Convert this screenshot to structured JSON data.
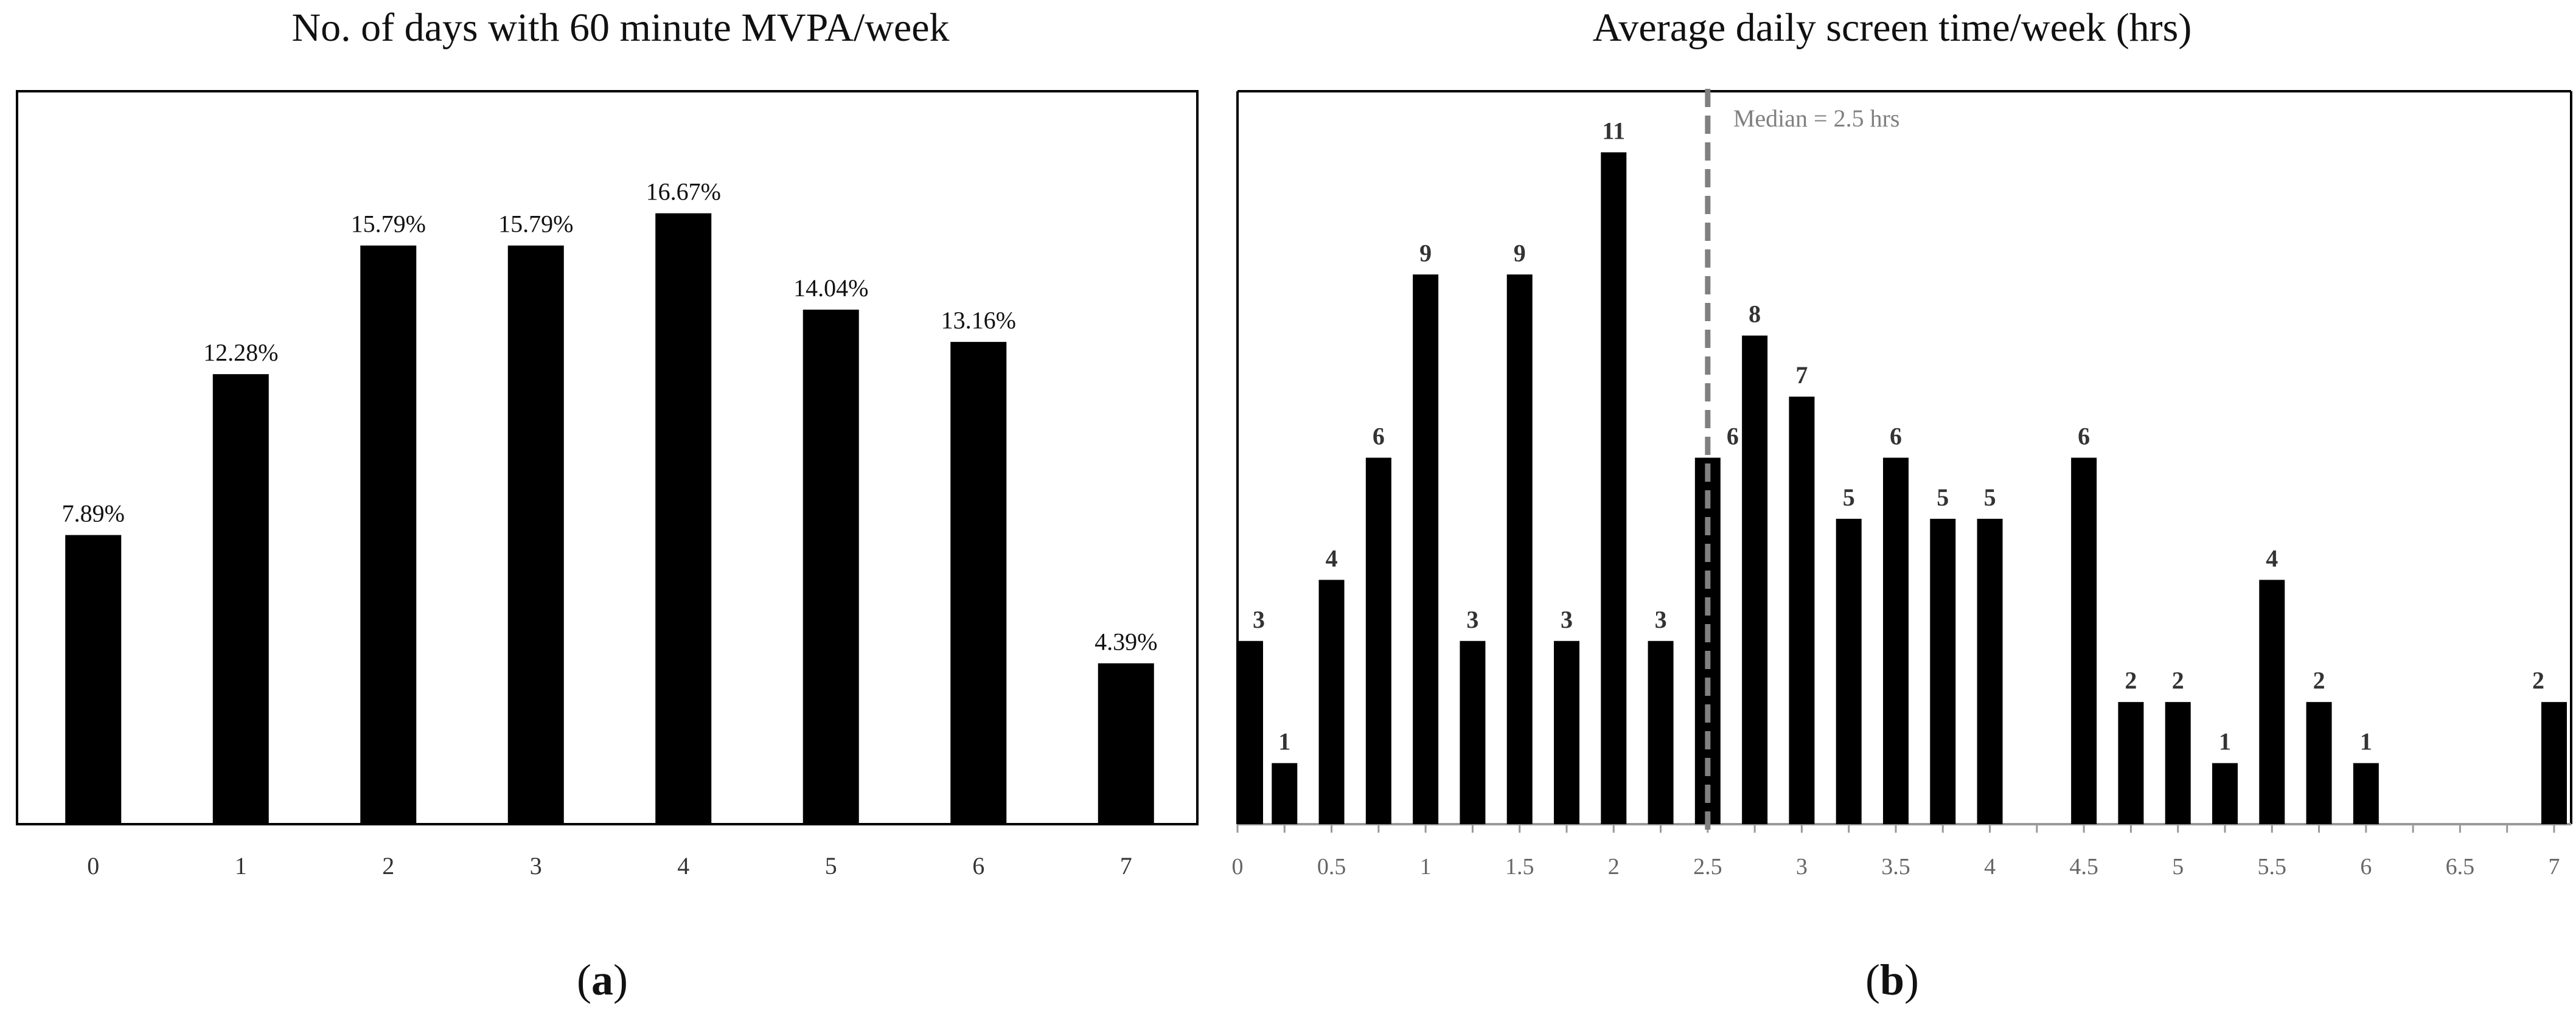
{
  "chart_data": [
    {
      "panel": "a",
      "type": "bar",
      "title": "No. of days with 60 minute MVPA/week",
      "categories": [
        "0",
        "1",
        "2",
        "3",
        "4",
        "5",
        "6",
        "7"
      ],
      "values": [
        7.89,
        12.28,
        15.79,
        15.79,
        16.67,
        14.04,
        13.16,
        4.39
      ],
      "data_labels": [
        "7.89%",
        "12.28%",
        "15.79%",
        "15.79%",
        "16.67%",
        "14.04%",
        "13.16%",
        "4.39%"
      ],
      "ylim": [
        0,
        20
      ],
      "grid": false,
      "panel_label": {
        "open": "(",
        "letter": "a",
        "close": ")"
      }
    },
    {
      "panel": "b",
      "type": "bar",
      "title": "Average daily screen time/week (hrs)",
      "x": [
        0,
        0.25,
        0.5,
        0.75,
        1,
        1.25,
        1.5,
        1.75,
        2,
        2.25,
        2.5,
        2.75,
        3,
        3.25,
        3.5,
        3.75,
        4,
        4.5,
        4.75,
        5,
        5.25,
        5.5,
        5.75,
        6,
        7
      ],
      "values": [
        3,
        1,
        4,
        6,
        9,
        3,
        9,
        3,
        11,
        3,
        6,
        8,
        7,
        5,
        6,
        5,
        5,
        6,
        2,
        2,
        1,
        4,
        2,
        1,
        2
      ],
      "data_labels": [
        "3",
        "1",
        "4",
        "6",
        "9",
        "3",
        "9",
        "3",
        "11",
        "3",
        "6",
        "8",
        "7",
        "5",
        "6",
        "5",
        "5",
        "6",
        "2",
        "2",
        "1",
        "4",
        "2",
        "1",
        "2"
      ],
      "xticks": [
        0,
        0.5,
        1,
        1.5,
        2,
        2.5,
        3,
        3.5,
        4,
        4.5,
        5,
        5.5,
        6,
        6.5,
        7
      ],
      "xtick_labels": [
        "0",
        "0.5",
        "1",
        "1.5",
        "2",
        "2.5",
        "3",
        "3.5",
        "4",
        "4.5",
        "5",
        "5.5",
        "6",
        "6.5",
        "7"
      ],
      "xlim": [
        0,
        7
      ],
      "ylim": [
        0,
        12
      ],
      "median": {
        "value": 2.5,
        "label": "Median = 2.5 hrs",
        "color": "#808080"
      },
      "grid": false,
      "panel_label": {
        "open": "(",
        "letter": "b",
        "close": ")"
      }
    }
  ],
  "colors": {
    "bar": "#000000",
    "axis": "#999999",
    "frame": "#000000",
    "text": "#111111"
  }
}
